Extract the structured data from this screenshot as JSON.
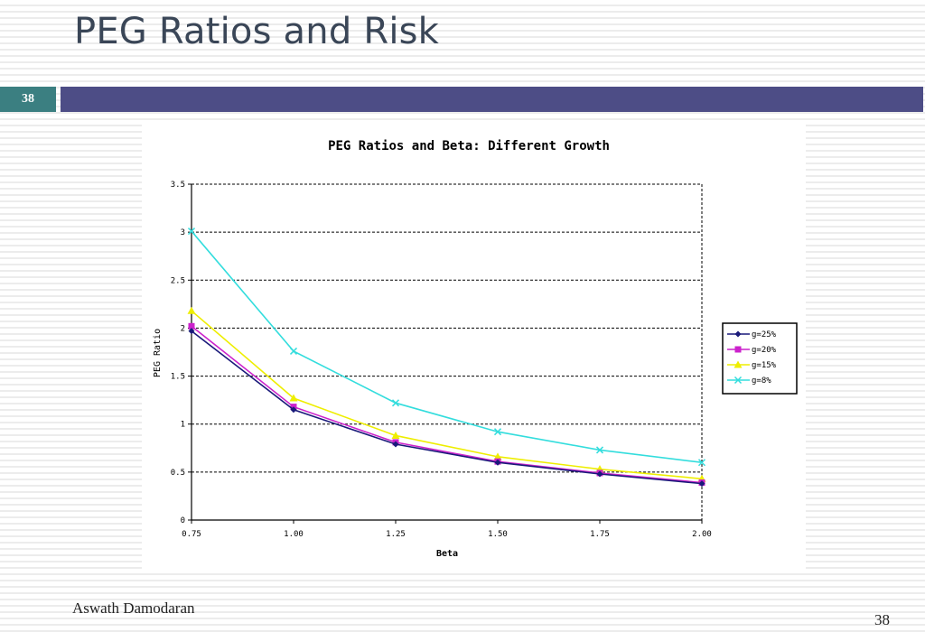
{
  "slide": {
    "title": "PEG Ratios and Risk",
    "slide_number": "38",
    "author": "Aswath Damodaran",
    "page_number": "38"
  },
  "colors": {
    "title_bar": "#4d4d86",
    "slide_number_box": "#3b7f81"
  },
  "chart_data": {
    "type": "line",
    "title": "PEG Ratios and Beta: Different Growth",
    "xlabel": "Beta",
    "ylabel": "PEG Ratio",
    "x": [
      0.75,
      1.0,
      1.25,
      1.5,
      1.75,
      2.0
    ],
    "x_tick_labels": [
      "0.75",
      "1.00",
      "1.25",
      "1.50",
      "1.75",
      "2.00"
    ],
    "y_ticks": [
      0,
      0.5,
      1,
      1.5,
      2,
      2.5,
      3,
      3.5
    ],
    "y_tick_labels": [
      "0",
      "0.5",
      "1",
      "1.5",
      "2",
      "2.5",
      "3",
      "3.5"
    ],
    "ylim": [
      0,
      3.5
    ],
    "grid": "horizontal-dashed",
    "legend_position": "right",
    "series": [
      {
        "name": "g=25%",
        "color": "#1a1a7a",
        "marker": "diamond",
        "values": [
          1.97,
          1.15,
          0.79,
          0.6,
          0.48,
          0.38
        ]
      },
      {
        "name": "g=20%",
        "color": "#cc22cc",
        "marker": "square",
        "values": [
          2.02,
          1.18,
          0.81,
          0.61,
          0.49,
          0.39
        ]
      },
      {
        "name": "g=15%",
        "color": "#eeee00",
        "marker": "triangle",
        "values": [
          2.18,
          1.27,
          0.88,
          0.66,
          0.53,
          0.43
        ]
      },
      {
        "name": "g=8%",
        "color": "#33dddd",
        "marker": "x",
        "values": [
          3.01,
          1.76,
          1.22,
          0.92,
          0.73,
          0.6
        ]
      }
    ]
  }
}
